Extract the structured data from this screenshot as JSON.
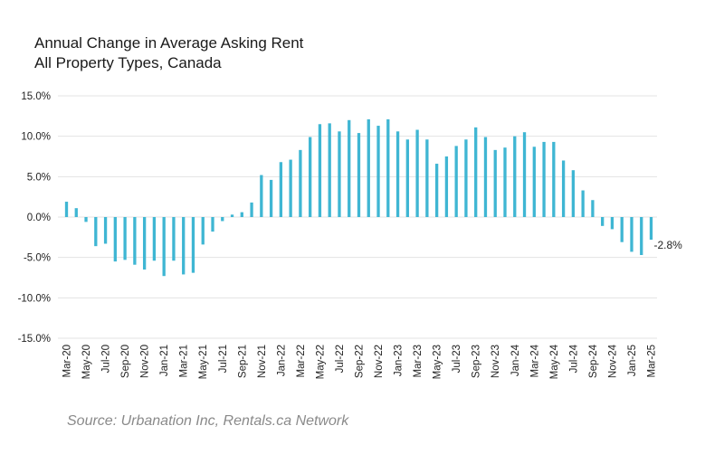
{
  "chart_data": {
    "type": "bar",
    "title": "Annual Change in Average Asking Rent",
    "subtitle": "All Property Types, Canada",
    "source": "Source: Urbanation Inc, Rentals.ca Network",
    "ylim": [
      -15,
      15
    ],
    "yticks": [
      "15.0%",
      "10.0%",
      "5.0%",
      "0.0%",
      "-5.0%",
      "-10.0%",
      "-15.0%"
    ],
    "ytick_values": [
      15,
      10,
      5,
      0,
      -5,
      -10,
      -15
    ],
    "grid": true,
    "bar_color": "#3fb6d3",
    "grid_color": "#e3e3e3",
    "categories": [
      "Mar-20",
      "Apr-20",
      "May-20",
      "Jun-20",
      "Jul-20",
      "Aug-20",
      "Sep-20",
      "Oct-20",
      "Nov-20",
      "Dec-20",
      "Jan-21",
      "Feb-21",
      "Mar-21",
      "Apr-21",
      "May-21",
      "Jun-21",
      "Jul-21",
      "Aug-21",
      "Sep-21",
      "Oct-21",
      "Nov-21",
      "Dec-21",
      "Jan-22",
      "Feb-22",
      "Mar-22",
      "Apr-22",
      "May-22",
      "Jun-22",
      "Jul-22",
      "Aug-22",
      "Sep-22",
      "Oct-22",
      "Nov-22",
      "Dec-22",
      "Jan-23",
      "Feb-23",
      "Mar-23",
      "Apr-23",
      "May-23",
      "Jun-23",
      "Jul-23",
      "Aug-23",
      "Sep-23",
      "Oct-23",
      "Nov-23",
      "Dec-23",
      "Jan-24",
      "Feb-24",
      "Mar-24",
      "Apr-24",
      "May-24",
      "Jun-24",
      "Jul-24",
      "Aug-24",
      "Sep-24",
      "Oct-24",
      "Nov-24",
      "Dec-24",
      "Jan-25",
      "Feb-25",
      "Mar-25"
    ],
    "x_tick_labels": [
      "Mar-20",
      "May-20",
      "Jul-20",
      "Sep-20",
      "Nov-20",
      "Jan-21",
      "Mar-21",
      "May-21",
      "Jul-21",
      "Sep-21",
      "Nov-21",
      "Jan-22",
      "Mar-22",
      "May-22",
      "Jul-22",
      "Sep-22",
      "Nov-22",
      "Jan-23",
      "Mar-23",
      "May-23",
      "Jul-23",
      "Sep-23",
      "Nov-23",
      "Jan-24",
      "Mar-24",
      "May-24",
      "Jul-24",
      "Sep-24",
      "Nov-24",
      "Jan-25",
      "Mar-25"
    ],
    "values": [
      1.9,
      1.1,
      -0.6,
      -3.6,
      -3.3,
      -5.5,
      -5.3,
      -5.9,
      -6.5,
      -5.4,
      -7.3,
      -5.4,
      -7.1,
      -6.9,
      -3.4,
      -1.8,
      -0.5,
      0.3,
      0.6,
      1.8,
      5.2,
      4.6,
      6.8,
      7.1,
      8.3,
      9.9,
      11.5,
      11.6,
      10.6,
      12.0,
      10.4,
      12.1,
      11.3,
      12.1,
      10.6,
      9.6,
      10.8,
      9.6,
      6.6,
      7.5,
      8.8,
      9.6,
      11.1,
      9.9,
      8.3,
      8.6,
      10.0,
      10.5,
      8.7,
      9.3,
      9.3,
      7.0,
      5.8,
      3.3,
      2.1,
      -1.1,
      -1.5,
      -3.1,
      -4.3,
      -4.7,
      -2.8
    ],
    "data_labels": [
      {
        "index": 60,
        "text": "-2.8%"
      }
    ]
  }
}
